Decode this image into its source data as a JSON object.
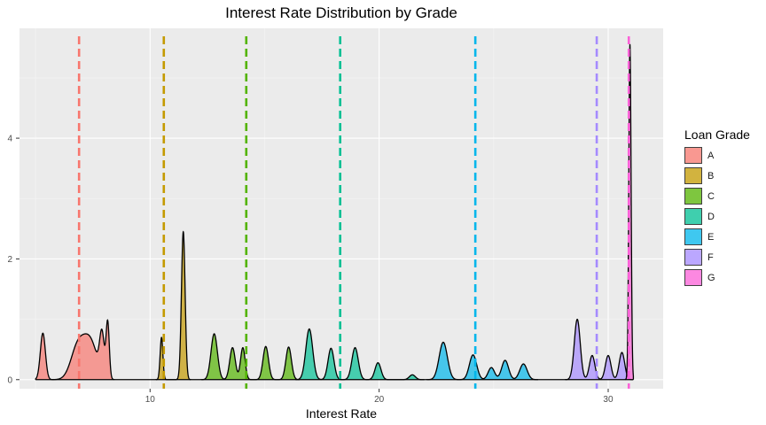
{
  "chart_data": {
    "type": "area",
    "title": "Interest Rate Distribution by Grade",
    "xlabel": "Interest Rate",
    "ylabel": "",
    "xlim": [
      4.3,
      32.4
    ],
    "ylim": [
      -0.15,
      5.82
    ],
    "x_ticks": [
      10,
      20,
      30
    ],
    "y_ticks": [
      0,
      2,
      4
    ],
    "grid": true,
    "legend": {
      "title": "Loan Grade",
      "position": "right"
    },
    "series": [
      {
        "name": "A",
        "color": "#F8766D",
        "mean": 6.9,
        "peaks": [
          [
            5.32,
            0.77,
            0.11
          ],
          [
            6.85,
            0.55,
            0.3
          ],
          [
            7.4,
            0.6,
            0.3
          ],
          [
            7.9,
            0.68,
            0.1
          ],
          [
            8.15,
            0.93,
            0.07
          ]
        ]
      },
      {
        "name": "B",
        "color": "#C49A00",
        "mean": 10.6,
        "peaks": [
          [
            10.5,
            0.7,
            0.06
          ],
          [
            11.45,
            2.45,
            0.08
          ]
        ]
      },
      {
        "name": "C",
        "color": "#53B400",
        "mean": 14.2,
        "peaks": [
          [
            12.8,
            0.76,
            0.14
          ],
          [
            13.6,
            0.53,
            0.12
          ],
          [
            14.05,
            0.53,
            0.1
          ],
          [
            15.05,
            0.55,
            0.12
          ],
          [
            16.05,
            0.54,
            0.12
          ]
        ]
      },
      {
        "name": "D",
        "color": "#00C094",
        "mean": 18.3,
        "peaks": [
          [
            16.95,
            0.84,
            0.15
          ],
          [
            17.9,
            0.52,
            0.13
          ],
          [
            18.95,
            0.53,
            0.14
          ],
          [
            19.95,
            0.28,
            0.13
          ],
          [
            21.45,
            0.08,
            0.13
          ]
        ]
      },
      {
        "name": "E",
        "color": "#00B6EB",
        "mean": 24.2,
        "peaks": [
          [
            22.8,
            0.62,
            0.18
          ],
          [
            24.1,
            0.41,
            0.16
          ],
          [
            24.9,
            0.2,
            0.14
          ],
          [
            25.5,
            0.32,
            0.15
          ],
          [
            26.3,
            0.26,
            0.16
          ]
        ]
      },
      {
        "name": "F",
        "color": "#A58AFF",
        "mean": 29.5,
        "peaks": [
          [
            28.65,
            1.0,
            0.13
          ],
          [
            29.3,
            0.4,
            0.12
          ],
          [
            30.0,
            0.4,
            0.12
          ],
          [
            30.6,
            0.45,
            0.12
          ]
        ]
      },
      {
        "name": "G",
        "color": "#FB61D7",
        "mean": 30.9,
        "peaks": [
          [
            30.95,
            5.55,
            0.05
          ]
        ]
      }
    ]
  }
}
